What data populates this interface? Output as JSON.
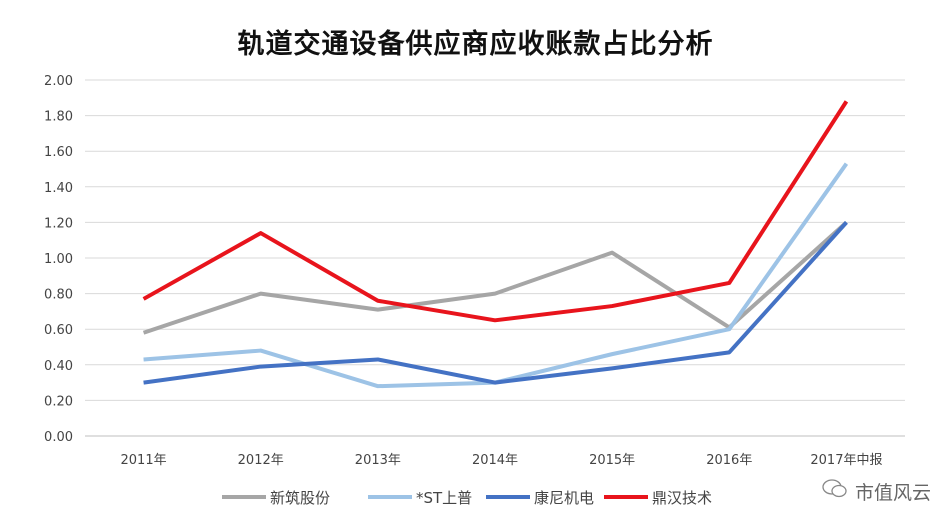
{
  "chart_data": {
    "type": "line",
    "title": "轨道交通设备供应商应收账款占比分析",
    "categories": [
      "2011年",
      "2012年",
      "2013年",
      "2014年",
      "2015年",
      "2016年",
      "2017年中报"
    ],
    "ylim": [
      0,
      2.0
    ],
    "yticks": [
      "0.00",
      "0.20",
      "0.40",
      "0.60",
      "0.80",
      "1.00",
      "1.20",
      "1.40",
      "1.60",
      "1.80",
      "2.00"
    ],
    "grid": true,
    "legend_position": "bottom",
    "series": [
      {
        "name": "新筑股份",
        "color": "#a6a6a6",
        "values": [
          0.58,
          0.8,
          0.71,
          0.8,
          1.03,
          0.61,
          1.2
        ]
      },
      {
        "name": "*ST上普",
        "color": "#9dc3e6",
        "values": [
          0.43,
          0.48,
          0.28,
          0.3,
          0.46,
          0.6,
          1.53
        ]
      },
      {
        "name": "康尼机电",
        "color": "#4472c4",
        "values": [
          0.3,
          0.39,
          0.43,
          0.3,
          0.38,
          0.47,
          1.2
        ]
      },
      {
        "name": "鼎汉技术",
        "color": "#e8141c",
        "values": [
          0.77,
          1.14,
          0.76,
          0.65,
          0.73,
          0.86,
          1.88
        ]
      }
    ]
  },
  "watermark": {
    "text": "市值风云",
    "icon": "wechat-icon"
  }
}
